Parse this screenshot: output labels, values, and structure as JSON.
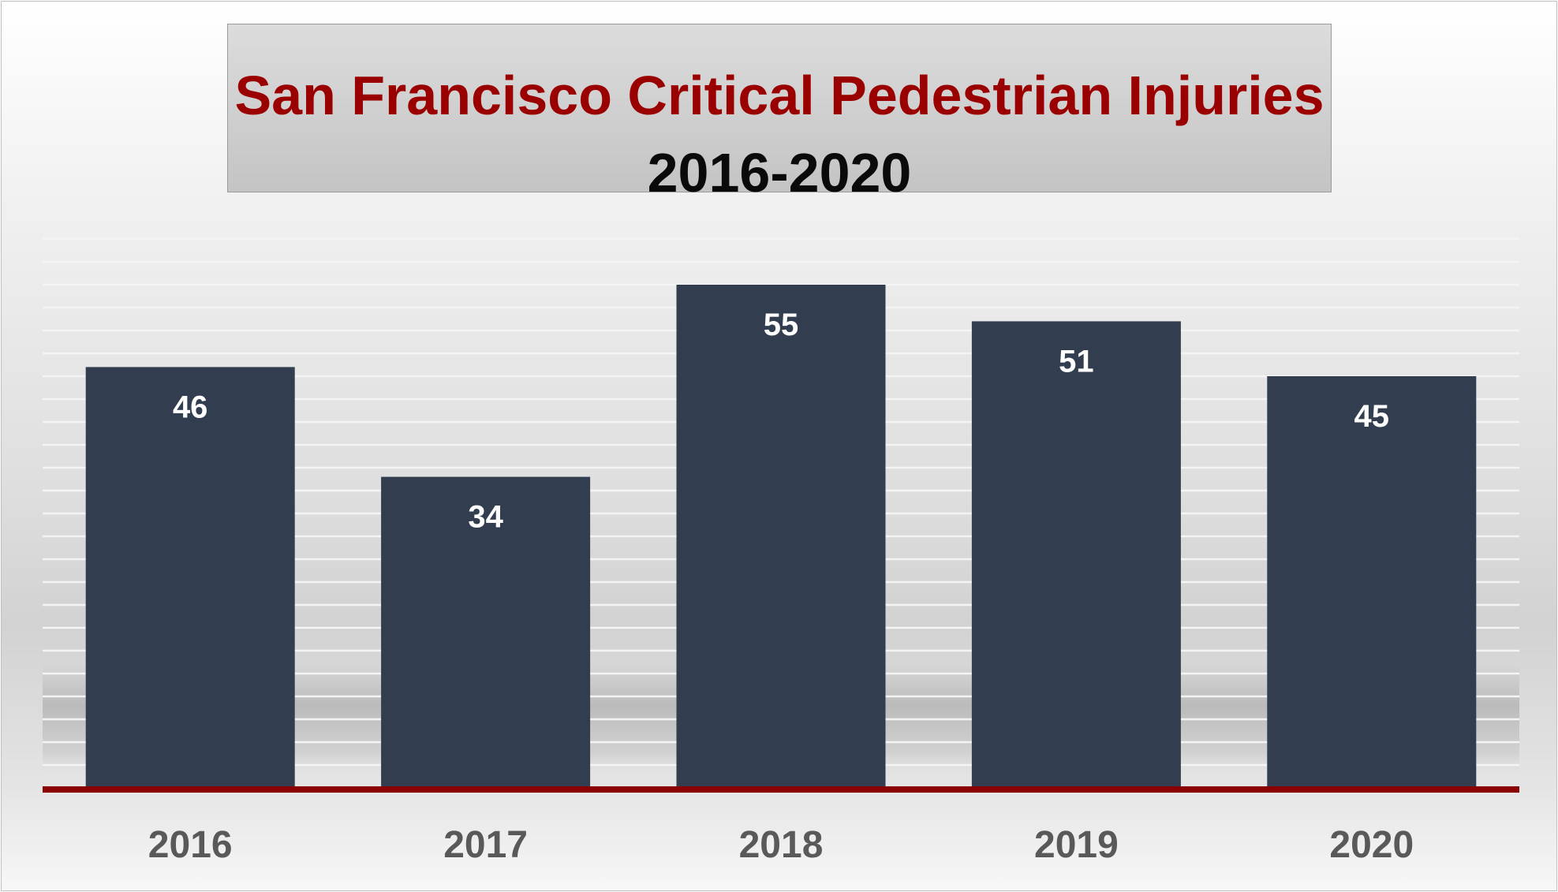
{
  "chart_data": {
    "type": "bar",
    "title": "San Francisco Critical Pedestrian Injuries",
    "subtitle": "2016-2020",
    "categories": [
      "2016",
      "2017",
      "2018",
      "2019",
      "2020"
    ],
    "values": [
      46,
      34,
      55,
      51,
      45
    ],
    "data_labels": [
      "46",
      "34",
      "55",
      "51",
      "45"
    ],
    "xlabel": "",
    "ylabel": "",
    "ylim": [
      0,
      60
    ],
    "grid": true,
    "legend": "none",
    "colors": {
      "bar": "#323d4f",
      "baseline": "#8b0000",
      "title": "#9b0000",
      "subtitle": "#0a0a0a",
      "bar_label": "#ffffff",
      "tick_label": "#595959",
      "gridline": "#f4f4f4"
    }
  }
}
